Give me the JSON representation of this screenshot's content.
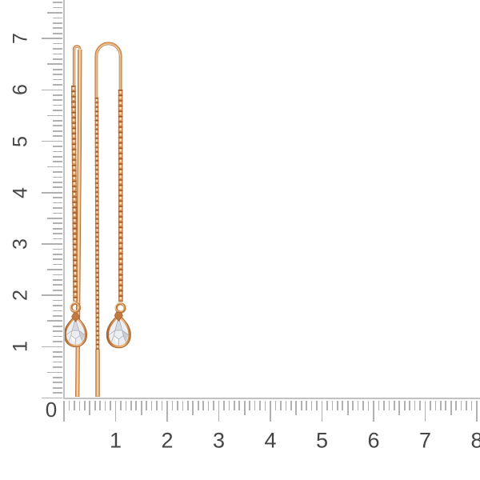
{
  "photo": {
    "subject": "pair-of-rose-gold-threader-chain-earrings-with-pear-shaped-clear-stones",
    "elements": {
      "left_earring": [
        "ear-wire-hairpin",
        "cable-chain",
        "jump-ring",
        "pear-stone-drop",
        "straight-post"
      ],
      "right_earring": [
        "u-shaped-ear-wire",
        "fine-chain",
        "straight-post",
        "cable-chain",
        "jump-ring",
        "pear-stone-drop"
      ]
    }
  },
  "rulers": {
    "origin_label": "0",
    "vertical": {
      "labels": [
        "1",
        "2",
        "3",
        "4",
        "5",
        "6",
        "7"
      ]
    },
    "horizontal": {
      "labels": [
        "1",
        "2",
        "3",
        "4",
        "5",
        "6",
        "7",
        "8"
      ]
    }
  },
  "colors": {
    "background": "#ffffff",
    "ruler_tick": "#b1b1b1",
    "ruler_baseline": "#c2c2c2",
    "ruler_number": "#454545",
    "gold_dark": "#a55c2d",
    "gold_mid": "#d28c55",
    "gold_light": "#f3d4a8",
    "gold_bright": "#fdf3e4",
    "stone": "#eceef1",
    "stone_facet": "#a3a5b0"
  }
}
